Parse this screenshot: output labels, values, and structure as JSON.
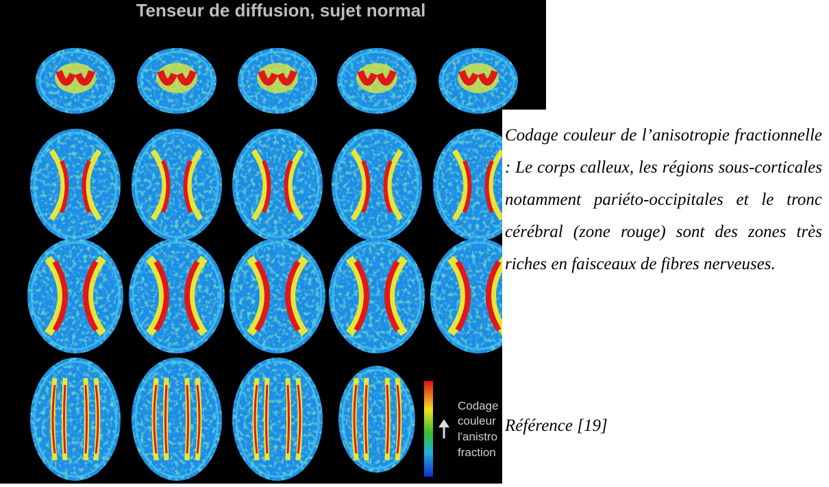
{
  "figure": {
    "title": "Tenseur de diffusion, sujet normal",
    "legend_lines": [
      "Codage",
      "couleur",
      "l'anistro",
      "fraction"
    ]
  },
  "caption": {
    "text": "Codage couleur de l’anisotropie fractionnelle : Le corps calleux, les régions sous-corticales notamment pariéto-occipitales et le tronc cérébral (zone rouge) sont des zones très riches en faisceaux de fibres nerveuses.",
    "reference": "Référence [19]"
  }
}
